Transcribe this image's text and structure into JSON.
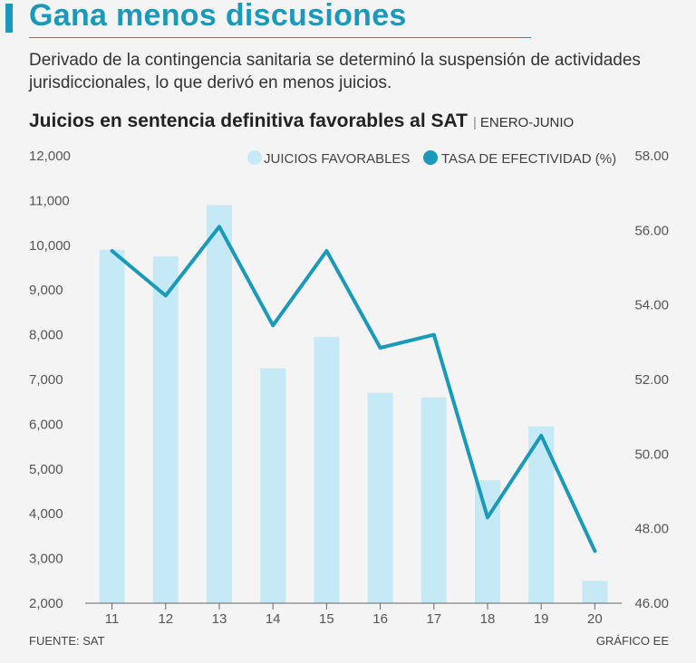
{
  "header": {
    "title": "Gana menos discusiones",
    "subtitle": "Derivado de la contingencia sanitaria se determinó la suspensión de actividades jurisdiccionales, lo que derivó en menos juicios."
  },
  "chart_data": {
    "type": "bar",
    "title": "Juicios en sentencia definitiva favorables al SAT",
    "period": "ENERO-JUNIO",
    "categories": [
      "11",
      "12",
      "13",
      "14",
      "15",
      "16",
      "17",
      "18",
      "19",
      "20"
    ],
    "series": [
      {
        "name": "JUICIOS FAVORABLES",
        "type": "bar",
        "axis": "left",
        "color": "#c6e9f6",
        "values": [
          9900,
          9750,
          10900,
          7250,
          7950,
          6700,
          6600,
          4750,
          5950,
          2500
        ]
      },
      {
        "name": "TASA DE EFECTIVIDAD (%)",
        "type": "line",
        "axis": "right",
        "color": "#1a9ab8",
        "values": [
          55.45,
          54.25,
          56.1,
          53.45,
          55.45,
          52.85,
          53.2,
          48.3,
          50.5,
          47.4
        ]
      }
    ],
    "y_left": {
      "min": 2000,
      "max": 12000,
      "ticks": [
        2000,
        3000,
        4000,
        5000,
        6000,
        7000,
        8000,
        9000,
        10000,
        11000,
        12000
      ],
      "tick_labels": [
        "2,000",
        "3,000",
        "4,000",
        "5,000",
        "6,000",
        "7,000",
        "8,000",
        "9,000",
        "10,000",
        "11,000",
        "12,000"
      ]
    },
    "y_right": {
      "min": 46,
      "max": 58,
      "ticks": [
        46,
        48,
        50,
        52,
        54,
        56,
        58
      ],
      "tick_labels": [
        "46.00",
        "48.00",
        "50.00",
        "52.00",
        "54.00",
        "56.00",
        "58.00"
      ]
    },
    "legend_position": "top-right"
  },
  "footer": {
    "source": "FUENTE: SAT",
    "credit": "GRÁFICO EE"
  }
}
